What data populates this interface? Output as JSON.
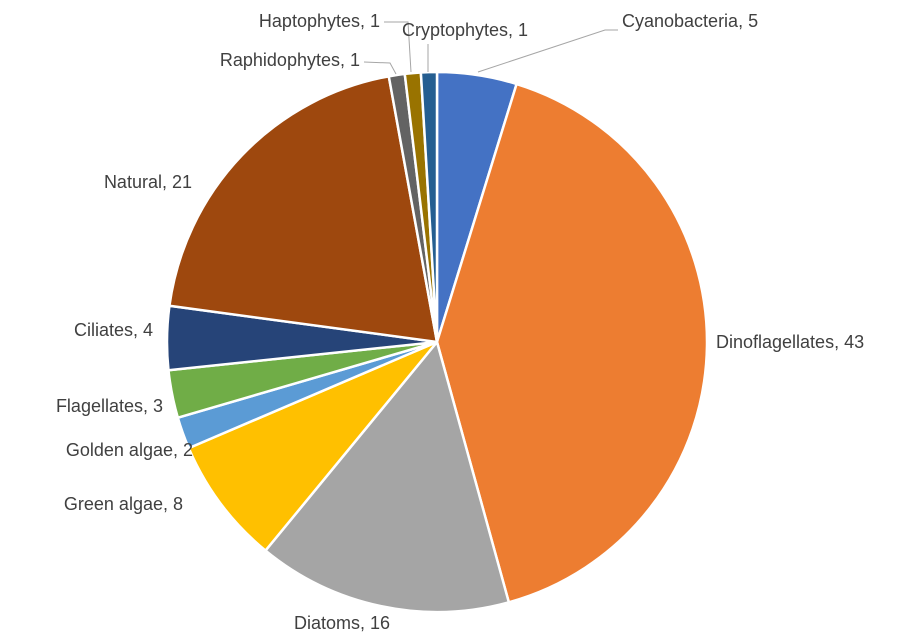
{
  "chart_data": {
    "type": "pie",
    "values": [
      5,
      43,
      16,
      8,
      2,
      3,
      4,
      21,
      1,
      1,
      1
    ],
    "value_labels": [
      "Cyanobacteria, 5",
      "Dinoflagellates, 43",
      "Diatoms, 16",
      "Green algae, 8",
      "Golden algae, 2",
      "Flagellates, 3",
      "Ciliates, 4",
      "Natural, 21",
      "Raphidophytes, 1",
      "Haptophytes, 1",
      "Cryptophytes, 1"
    ],
    "colors": [
      "#4472c4",
      "#ed7d31",
      "#a5a5a5",
      "#ffc000",
      "#5b9bd5",
      "#70ad47",
      "#264478",
      "#9e480e",
      "#636363",
      "#997300",
      "#255e91"
    ]
  }
}
